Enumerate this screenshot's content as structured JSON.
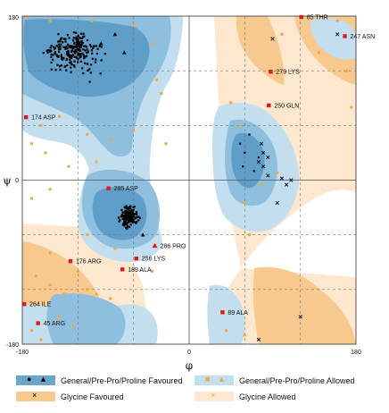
{
  "chart_data": {
    "type": "scatter",
    "title": "",
    "xlabel": "φ",
    "ylabel": "ψ",
    "xlim": [
      -180,
      180
    ],
    "ylim": [
      -180,
      180
    ],
    "x_ticks": [
      "-180",
      "0",
      "180"
    ],
    "y_ticks": [
      "180",
      "0",
      "-180"
    ],
    "grid": "dashed",
    "legend": [
      {
        "name": "General/Pre-Pro/Proline Favoured",
        "color": "#2b6e95"
      },
      {
        "name": "General/Pre-Pro/Proline Allowed",
        "color": "#f0a640"
      },
      {
        "name": "Glycine Favoured",
        "color": "#f5c487"
      },
      {
        "name": "Glycine Allowed",
        "color": "#fce9d0"
      }
    ],
    "colors": {
      "general_favoured": "#6aa6cc",
      "general_allowed": "#c2deef",
      "glycine_favoured": "#f7c98e",
      "glycine_allowed": "#fde8cf",
      "point": "#000000",
      "outlier": "#e0191b"
    },
    "annotations": [
      {
        "label": "65 THR",
        "phi": 121,
        "psi": 179
      },
      {
        "label": "247 ASN",
        "phi": 168,
        "psi": 158
      },
      {
        "label": "279 LYS",
        "phi": 88,
        "psi": 119
      },
      {
        "label": "250 GLN",
        "phi": 86,
        "psi": 82
      },
      {
        "label": "174 ASP",
        "phi": -176,
        "psi": 69
      },
      {
        "label": "285 ASP",
        "phi": -87,
        "psi": -9
      },
      {
        "label": "286 PRO",
        "phi": -37,
        "psi": -72
      },
      {
        "label": "256 LYS",
        "phi": -57,
        "psi": -86
      },
      {
        "label": "176 ARG",
        "phi": -128,
        "psi": -89
      },
      {
        "label": "189 ALA",
        "phi": -72,
        "psi": -98
      },
      {
        "label": "264 ILE",
        "phi": -178,
        "psi": -136
      },
      {
        "label": "45 ARG",
        "phi": -163,
        "psi": -157
      },
      {
        "label": "89 ALA",
        "phi": 36,
        "psi": -145
      }
    ]
  }
}
